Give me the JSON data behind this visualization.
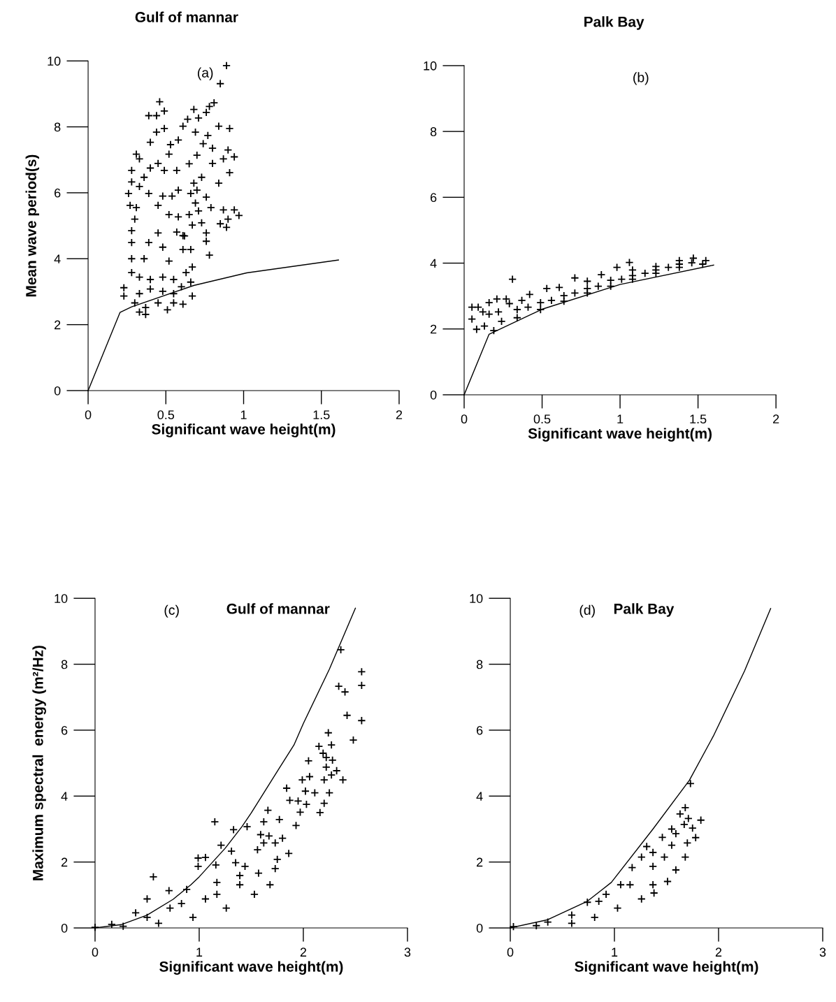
{
  "chart_data": [
    {
      "type": "scatter",
      "title": "Gulf of mannar",
      "xlabel": "Significant wave height(m)",
      "ylabel": "Mean wave period(s)",
      "annotations": [
        "(a)"
      ],
      "xlim": [
        0,
        2
      ],
      "ylim": [
        0,
        10
      ],
      "xticks": [
        0,
        0.5,
        1,
        1.5,
        2
      ],
      "yticks": [
        0,
        2,
        4,
        6,
        8,
        10
      ],
      "grid": false,
      "legend": false,
      "series": [
        {
          "type": "scatter",
          "marker": "cross",
          "color": "#000000",
          "x": [
            0.89,
            0.85,
            0.46,
            0.49,
            0.81,
            0.78,
            0.68,
            0.76,
            0.39,
            0.44,
            0.64,
            0.71,
            0.61,
            0.84,
            0.91,
            0.69,
            0.77,
            0.58,
            0.74,
            0.8,
            0.9,
            0.94,
            0.7,
            0.87,
            0.65,
            0.8,
            0.91,
            0.73,
            0.84,
            0.68,
            0.7,
            0.66,
            0.76,
            0.69,
            0.71,
            0.79,
            0.87,
            0.94,
            0.97,
            0.9,
            0.65,
            0.73,
            0.67,
            0.85,
            0.89,
            0.76,
            0.76,
            0.78,
            0.62,
            0.66,
            0.67,
            0.31,
            0.33,
            0.28,
            0.28,
            0.26,
            0.27,
            0.4,
            0.44,
            0.49,
            0.53,
            0.52,
            0.57,
            0.49,
            0.4,
            0.36,
            0.45,
            0.33,
            0.39,
            0.48,
            0.54,
            0.58,
            0.45,
            0.31,
            0.3,
            0.52,
            0.58,
            0.57,
            0.61,
            0.28,
            0.28,
            0.28,
            0.28,
            0.23,
            0.23,
            0.33,
            0.37,
            0.51,
            0.61,
            0.67,
            0.66,
            0.63,
            0.61,
            0.39,
            0.45,
            0.48,
            0.36,
            0.52,
            0.33,
            0.4,
            0.48,
            0.55,
            0.6,
            0.33,
            0.4,
            0.48,
            0.55,
            0.3,
            0.45,
            0.55,
            0.37
          ],
          "values": [
            9.86,
            9.31,
            8.76,
            8.48,
            8.73,
            8.62,
            8.53,
            8.44,
            8.34,
            8.34,
            8.23,
            8.27,
            8.02,
            8.02,
            7.95,
            7.84,
            7.74,
            7.6,
            7.49,
            7.35,
            7.3,
            7.09,
            7.14,
            7.03,
            6.88,
            6.89,
            6.61,
            6.47,
            6.29,
            6.29,
            6.08,
            5.98,
            5.87,
            5.69,
            5.45,
            5.55,
            5.48,
            5.48,
            5.31,
            5.2,
            5.34,
            5.09,
            5.02,
            5.06,
            4.95,
            4.78,
            4.53,
            4.11,
            4.69,
            4.28,
            3.75,
            7.17,
            7.03,
            6.68,
            6.33,
            5.98,
            5.62,
            7.53,
            7.84,
            7.95,
            7.46,
            7.17,
            6.68,
            6.68,
            6.75,
            6.47,
            6.89,
            6.19,
            5.98,
            5.9,
            5.9,
            6.08,
            5.62,
            5.55,
            5.2,
            5.34,
            5.27,
            4.81,
            4.7,
            4.85,
            4.49,
            4.0,
            3.58,
            3.12,
            2.87,
            2.38,
            2.31,
            2.45,
            2.62,
            2.87,
            3.29,
            3.58,
            4.28,
            4.49,
            4.78,
            4.35,
            4.0,
            3.93,
            3.44,
            3.37,
            3.44,
            3.37,
            3.15,
            2.94,
            3.08,
            3.01,
            2.94,
            2.66,
            2.66,
            2.66,
            2.52
          ]
        },
        {
          "type": "line",
          "marker": "none",
          "line_style": "solid",
          "color": "#000000",
          "x": [
            0,
            0.205,
            0.28,
            0.68,
            1.02,
            1.61
          ],
          "values": [
            0,
            2.37,
            2.54,
            3.19,
            3.57,
            3.96
          ]
        }
      ]
    },
    {
      "type": "scatter",
      "title": "Palk Bay",
      "xlabel": "Significant wave height(m)",
      "annotations": [
        "(b)"
      ],
      "xlim": [
        0,
        2
      ],
      "ylim": [
        0,
        10
      ],
      "xticks": [
        0,
        0.5,
        1,
        1.5,
        2
      ],
      "yticks": [
        0,
        2,
        4,
        6,
        8,
        10
      ],
      "grid": false,
      "legend": false,
      "series": [
        {
          "type": "scatter",
          "marker": "cross",
          "color": "#000000",
          "x": [
            0.05,
            0.05,
            0.08,
            0.09,
            0.13,
            0.19,
            0.16,
            0.21,
            0.27,
            0.29,
            0.24,
            0.31,
            0.16,
            0.12,
            0.22,
            0.34,
            0.49,
            0.64,
            0.79,
            0.94,
            1.08,
            1.23,
            1.38,
            1.53,
            0.37,
            0.42,
            0.53,
            0.61,
            0.71,
            0.79,
            0.88,
            0.98,
            1.06,
            1.08,
            1.23,
            1.38,
            1.47,
            1.55,
            0.41,
            0.56,
            0.71,
            0.86,
            1.01,
            1.16,
            1.31,
            1.46,
            0.34,
            0.49,
            0.64,
            0.79,
            0.94,
            1.08,
            1.23,
            1.38
          ],
          "values": [
            2.66,
            2.3,
            1.99,
            2.66,
            2.09,
            1.95,
            2.8,
            2.91,
            2.91,
            2.77,
            2.23,
            3.51,
            2.45,
            2.52,
            2.52,
            2.34,
            2.59,
            2.84,
            3.09,
            3.3,
            3.51,
            3.69,
            3.87,
            3.97,
            2.87,
            3.05,
            3.23,
            3.26,
            3.55,
            3.45,
            3.65,
            3.87,
            4.02,
            3.79,
            3.9,
            4.08,
            4.15,
            4.08,
            2.66,
            2.87,
            3.09,
            3.3,
            3.51,
            3.69,
            3.87,
            4.01,
            2.59,
            2.8,
            3.01,
            3.23,
            3.48,
            3.62,
            3.79,
            3.97
          ]
        },
        {
          "type": "line",
          "marker": "none",
          "line_style": "solid",
          "color": "#000000",
          "x": [
            0,
            0.16,
            0.5,
            1.0,
            1.6
          ],
          "values": [
            0,
            1.84,
            2.6,
            3.35,
            3.94
          ]
        }
      ]
    },
    {
      "type": "scatter",
      "title": "Gulf of mannar",
      "xlabel": "Significant wave height(m)",
      "ylabel": "Maximum spectral  energy (m²/Hz)",
      "annotations": [
        "(c)"
      ],
      "xlim": [
        0,
        3
      ],
      "ylim": [
        0,
        10
      ],
      "xticks": [
        0,
        1,
        2,
        3
      ],
      "yticks": [
        0,
        2,
        4,
        6,
        8,
        10
      ],
      "grid": false,
      "legend": false,
      "series": [
        {
          "type": "scatter",
          "marker": "cross",
          "color": "#000000",
          "x": [
            2.36,
            2.56,
            2.56,
            2.34,
            2.4,
            2.42,
            2.56,
            2.48,
            2.24,
            2.15,
            2.27,
            2.19,
            2.22,
            2.28,
            2.05,
            2.22,
            2.32,
            2.27,
            2.2,
            2.38,
            1.99,
            2.06,
            2.02,
            2.11,
            2.25,
            1.84,
            1.87,
            1.95,
            2.03,
            2.2,
            2.16,
            1.97,
            1.66,
            1.15,
            1.77,
            1.93,
            1.62,
            1.46,
            1.33,
            1.67,
            1.59,
            1.8,
            1.86,
            1.75,
            1.21,
            1.31,
            0.99,
            1.06,
            0.99,
            0.56,
            1.16,
            1.35,
            1.56,
            1.73,
            1.68,
            1.53,
            1.26,
            0.94,
            0.61,
            0.27,
            0.0,
            0.5,
            0.71,
            0.88,
            1.17,
            1.44,
            1.62,
            1.73,
            0.39,
            0.72,
            1.06,
            1.39,
            1.57,
            0.16,
            0.5,
            0.83,
            1.17,
            1.39
          ],
          "values": [
            8.44,
            7.77,
            7.36,
            7.33,
            7.16,
            6.45,
            6.29,
            5.7,
            5.92,
            5.51,
            5.55,
            5.3,
            5.17,
            5.09,
            5.07,
            4.88,
            4.77,
            4.64,
            4.49,
            4.49,
            4.49,
            4.59,
            4.15,
            4.1,
            4.1,
            4.24,
            3.87,
            3.85,
            3.75,
            3.78,
            3.5,
            3.51,
            3.57,
            3.22,
            3.29,
            3.11,
            3.22,
            3.07,
            2.98,
            2.79,
            2.83,
            2.72,
            2.26,
            2.08,
            2.51,
            2.33,
            2.12,
            2.14,
            1.87,
            1.55,
            1.91,
            1.98,
            2.37,
            1.8,
            1.31,
            1.02,
            0.6,
            0.32,
            0.14,
            0.05,
            0.02,
            0.88,
            1.13,
            1.17,
            1.38,
            1.87,
            2.58,
            2.58,
            0.46,
            0.6,
            0.88,
            1.31,
            1.66,
            0.11,
            0.32,
            0.74,
            1.02,
            1.59
          ]
        },
        {
          "type": "line",
          "marker": "none",
          "line_style": "solid",
          "color": "#000000",
          "x": [
            0,
            0.25,
            0.5,
            0.75,
            0.92,
            1.0,
            1.25,
            1.41,
            1.5,
            1.75,
            1.91,
            2.0,
            2.25,
            2.5
          ],
          "values": [
            0,
            0.1,
            0.39,
            0.87,
            1.31,
            1.55,
            2.42,
            3.07,
            3.49,
            4.75,
            5.55,
            6.2,
            7.85,
            9.7
          ]
        }
      ]
    },
    {
      "type": "scatter",
      "title": "Palk Bay",
      "xlabel": "Significant wave height(m)",
      "annotations": [
        "(d)"
      ],
      "xlim": [
        0,
        3
      ],
      "ylim": [
        0,
        10
      ],
      "xticks": [
        0,
        1,
        2,
        3
      ],
      "yticks": [
        0,
        2,
        4,
        6,
        8,
        10
      ],
      "grid": false,
      "legend": false,
      "series": [
        {
          "type": "scatter",
          "marker": "cross",
          "color": "#000000",
          "x": [
            1.73,
            1.68,
            1.63,
            1.83,
            1.71,
            1.67,
            1.75,
            1.78,
            1.7,
            1.68,
            1.59,
            1.51,
            1.38,
            1.46,
            1.55,
            1.31,
            1.17,
            1.06,
            0.85,
            0.74,
            0.59,
            0.36,
            0.03,
            0.25,
            1.26,
            1.37,
            1.48,
            1.15,
            1.26,
            1.03,
            0.81,
            0.59,
            0.92,
            1.37,
            1.55,
            1.59,
            1.37
          ],
          "values": [
            4.38,
            3.65,
            3.46,
            3.27,
            3.32,
            3.14,
            3.03,
            2.74,
            2.58,
            2.15,
            1.76,
            1.41,
            1.06,
            2.75,
            3.0,
            2.47,
            1.83,
            1.31,
            0.81,
            0.78,
            0.39,
            0.18,
            0.04,
            0.07,
            2.15,
            1.87,
            2.15,
            1.31,
            0.88,
            0.6,
            0.32,
            0.14,
            1.02,
            1.31,
            2.51,
            2.86,
            2.29
          ]
        },
        {
          "type": "line",
          "marker": "none",
          "line_style": "solid",
          "color": "#000000",
          "x": [
            0,
            0.36,
            0.74,
            0.97,
            1.37,
            1.72,
            1.95,
            2.25,
            2.5
          ],
          "values": [
            0,
            0.25,
            0.81,
            1.38,
            3.0,
            4.48,
            5.82,
            7.8,
            9.69
          ]
        }
      ]
    }
  ]
}
